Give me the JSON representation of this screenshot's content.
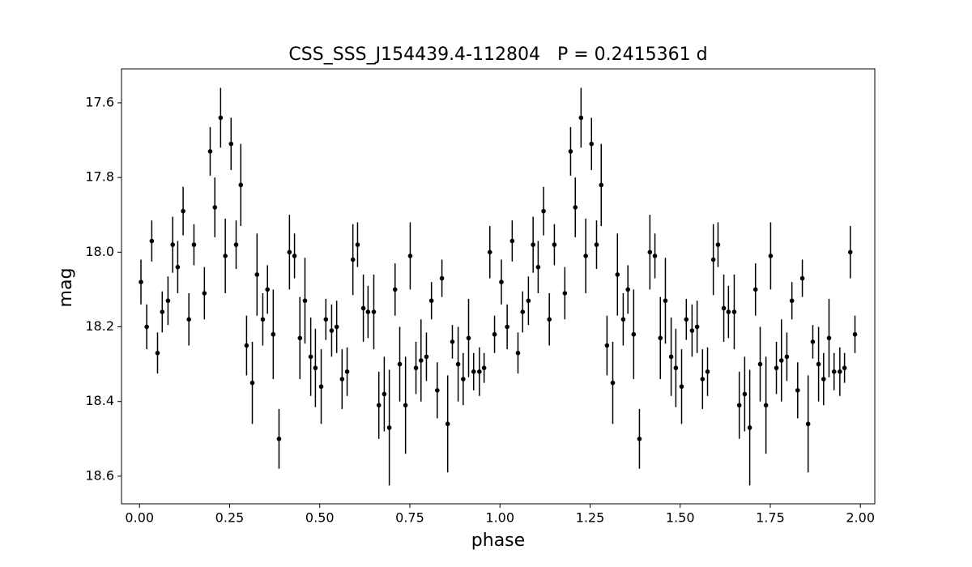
{
  "chart_data": {
    "type": "scatter",
    "title": "CSS_SSS_J154439.4-112804   P = 0.2415361 d",
    "x_label": "phase",
    "y_label": "mag",
    "color": "#000000",
    "xlim": [
      -0.05,
      2.04
    ],
    "ylim": [
      18.674,
      17.509
    ],
    "xticks": [
      {
        "value": 0,
        "label": "0.00"
      },
      {
        "value": 0.25,
        "label": "0.25"
      },
      {
        "value": 0.5,
        "label": "0.50"
      },
      {
        "value": 0.75,
        "label": "0.75"
      },
      {
        "value": 1,
        "label": "1.00"
      },
      {
        "value": 1.25,
        "label": "1.25"
      },
      {
        "value": 1.5,
        "label": "1.50"
      },
      {
        "value": 1.75,
        "label": "1.75"
      },
      {
        "value": 2,
        "label": "2.00"
      }
    ],
    "yticks": [
      17.6,
      17.8,
      {
        "value": 18,
        "label": "18.0"
      },
      18.2,
      18.4,
      18.6
    ],
    "x": [
      0.004,
      0.02,
      0.034,
      0.05,
      0.063,
      0.079,
      0.092,
      0.106,
      0.121,
      0.137,
      0.151,
      0.18,
      0.196,
      0.209,
      0.225,
      0.238,
      0.254,
      0.268,
      0.281,
      0.297,
      0.313,
      0.326,
      0.342,
      0.355,
      0.371,
      0.387,
      0.416,
      0.43,
      0.445,
      0.459,
      0.475,
      0.488,
      0.504,
      0.517,
      0.533,
      0.547,
      0.562,
      0.576,
      0.592,
      0.605,
      0.621,
      0.634,
      0.65,
      0.664,
      0.679,
      0.693,
      0.709,
      0.722,
      0.738,
      0.751,
      0.767,
      0.781,
      0.796,
      0.81,
      0.826,
      0.839,
      0.855,
      0.868,
      0.884,
      0.898,
      0.913,
      0.927,
      0.943,
      0.956,
      0.972,
      0.985,
      1.004,
      1.02,
      1.034,
      1.05,
      1.063,
      1.079,
      1.092,
      1.106,
      1.121,
      1.137,
      1.151,
      1.18,
      1.196,
      1.209,
      1.225,
      1.238,
      1.254,
      1.268,
      1.281,
      1.297,
      1.313,
      1.326,
      1.342,
      1.355,
      1.371,
      1.387,
      1.416,
      1.43,
      1.445,
      1.459,
      1.475,
      1.488,
      1.504,
      1.517,
      1.533,
      1.547,
      1.562,
      1.576,
      1.592,
      1.605,
      1.621,
      1.634,
      1.65,
      1.664,
      1.679,
      1.693,
      1.709,
      1.722,
      1.738,
      1.751,
      1.767,
      1.781,
      1.796,
      1.81,
      1.826,
      1.839,
      1.855,
      1.868,
      1.884,
      1.898,
      1.913,
      1.927,
      1.943,
      1.956,
      1.972,
      1.985
    ],
    "values": [
      18.08,
      18.2,
      17.97,
      18.27,
      18.16,
      18.13,
      17.98,
      18.04,
      17.89,
      18.18,
      17.98,
      18.11,
      17.73,
      17.88,
      17.64,
      18.01,
      17.71,
      17.98,
      17.82,
      18.25,
      18.35,
      18.06,
      18.18,
      18.1,
      18.22,
      18.5,
      18.0,
      18.01,
      18.23,
      18.13,
      18.28,
      18.31,
      18.36,
      18.18,
      18.21,
      18.2,
      18.34,
      18.32,
      18.02,
      17.98,
      18.15,
      18.16,
      18.16,
      18.41,
      18.38,
      18.47,
      18.1,
      18.3,
      18.41,
      18.01,
      18.31,
      18.29,
      18.28,
      18.13,
      18.37,
      18.07,
      18.46,
      18.24,
      18.3,
      18.34,
      18.23,
      18.32,
      18.32,
      18.31,
      18.0,
      18.22,
      18.08,
      18.2,
      17.97,
      18.27,
      18.16,
      18.13,
      17.98,
      18.04,
      17.89,
      18.18,
      17.98,
      18.11,
      17.73,
      17.88,
      17.64,
      18.01,
      17.71,
      17.98,
      17.82,
      18.25,
      18.35,
      18.06,
      18.18,
      18.1,
      18.22,
      18.5,
      18.0,
      18.01,
      18.23,
      18.13,
      18.28,
      18.31,
      18.36,
      18.18,
      18.21,
      18.2,
      18.34,
      18.32,
      18.02,
      17.98,
      18.15,
      18.16,
      18.16,
      18.41,
      18.38,
      18.47,
      18.1,
      18.3,
      18.41,
      18.01,
      18.31,
      18.29,
      18.28,
      18.13,
      18.37,
      18.07,
      18.46,
      18.24,
      18.3,
      18.34,
      18.23,
      18.32,
      18.32,
      18.31,
      18.0,
      18.22
    ],
    "errors": [
      0.06,
      0.06,
      0.055,
      0.055,
      0.055,
      0.065,
      0.075,
      0.07,
      0.065,
      0.07,
      0.055,
      0.07,
      0.065,
      0.08,
      0.08,
      0.1,
      0.07,
      0.065,
      0.11,
      0.08,
      0.11,
      0.11,
      0.07,
      0.065,
      0.12,
      0.08,
      0.1,
      0.06,
      0.11,
      0.115,
      0.105,
      0.105,
      0.1,
      0.055,
      0.07,
      0.07,
      0.08,
      0.065,
      0.095,
      0.06,
      0.09,
      0.07,
      0.1,
      0.09,
      0.1,
      0.155,
      0.07,
      0.1,
      0.13,
      0.09,
      0.07,
      0.11,
      0.065,
      0.05,
      0.075,
      0.05,
      0.13,
      0.045,
      0.1,
      0.07,
      0.105,
      0.05,
      0.065,
      0.04,
      0.07,
      0.05,
      0.06,
      0.06,
      0.055,
      0.055,
      0.055,
      0.065,
      0.075,
      0.07,
      0.065,
      0.07,
      0.055,
      0.07,
      0.065,
      0.08,
      0.08,
      0.1,
      0.07,
      0.065,
      0.11,
      0.08,
      0.11,
      0.11,
      0.07,
      0.065,
      0.12,
      0.08,
      0.1,
      0.06,
      0.11,
      0.115,
      0.105,
      0.105,
      0.1,
      0.055,
      0.07,
      0.07,
      0.08,
      0.065,
      0.095,
      0.06,
      0.09,
      0.07,
      0.1,
      0.09,
      0.1,
      0.155,
      0.07,
      0.1,
      0.13,
      0.09,
      0.07,
      0.11,
      0.065,
      0.05,
      0.075,
      0.05,
      0.13,
      0.045,
      0.1,
      0.07,
      0.105,
      0.05,
      0.065,
      0.04,
      0.07,
      0.05
    ]
  }
}
